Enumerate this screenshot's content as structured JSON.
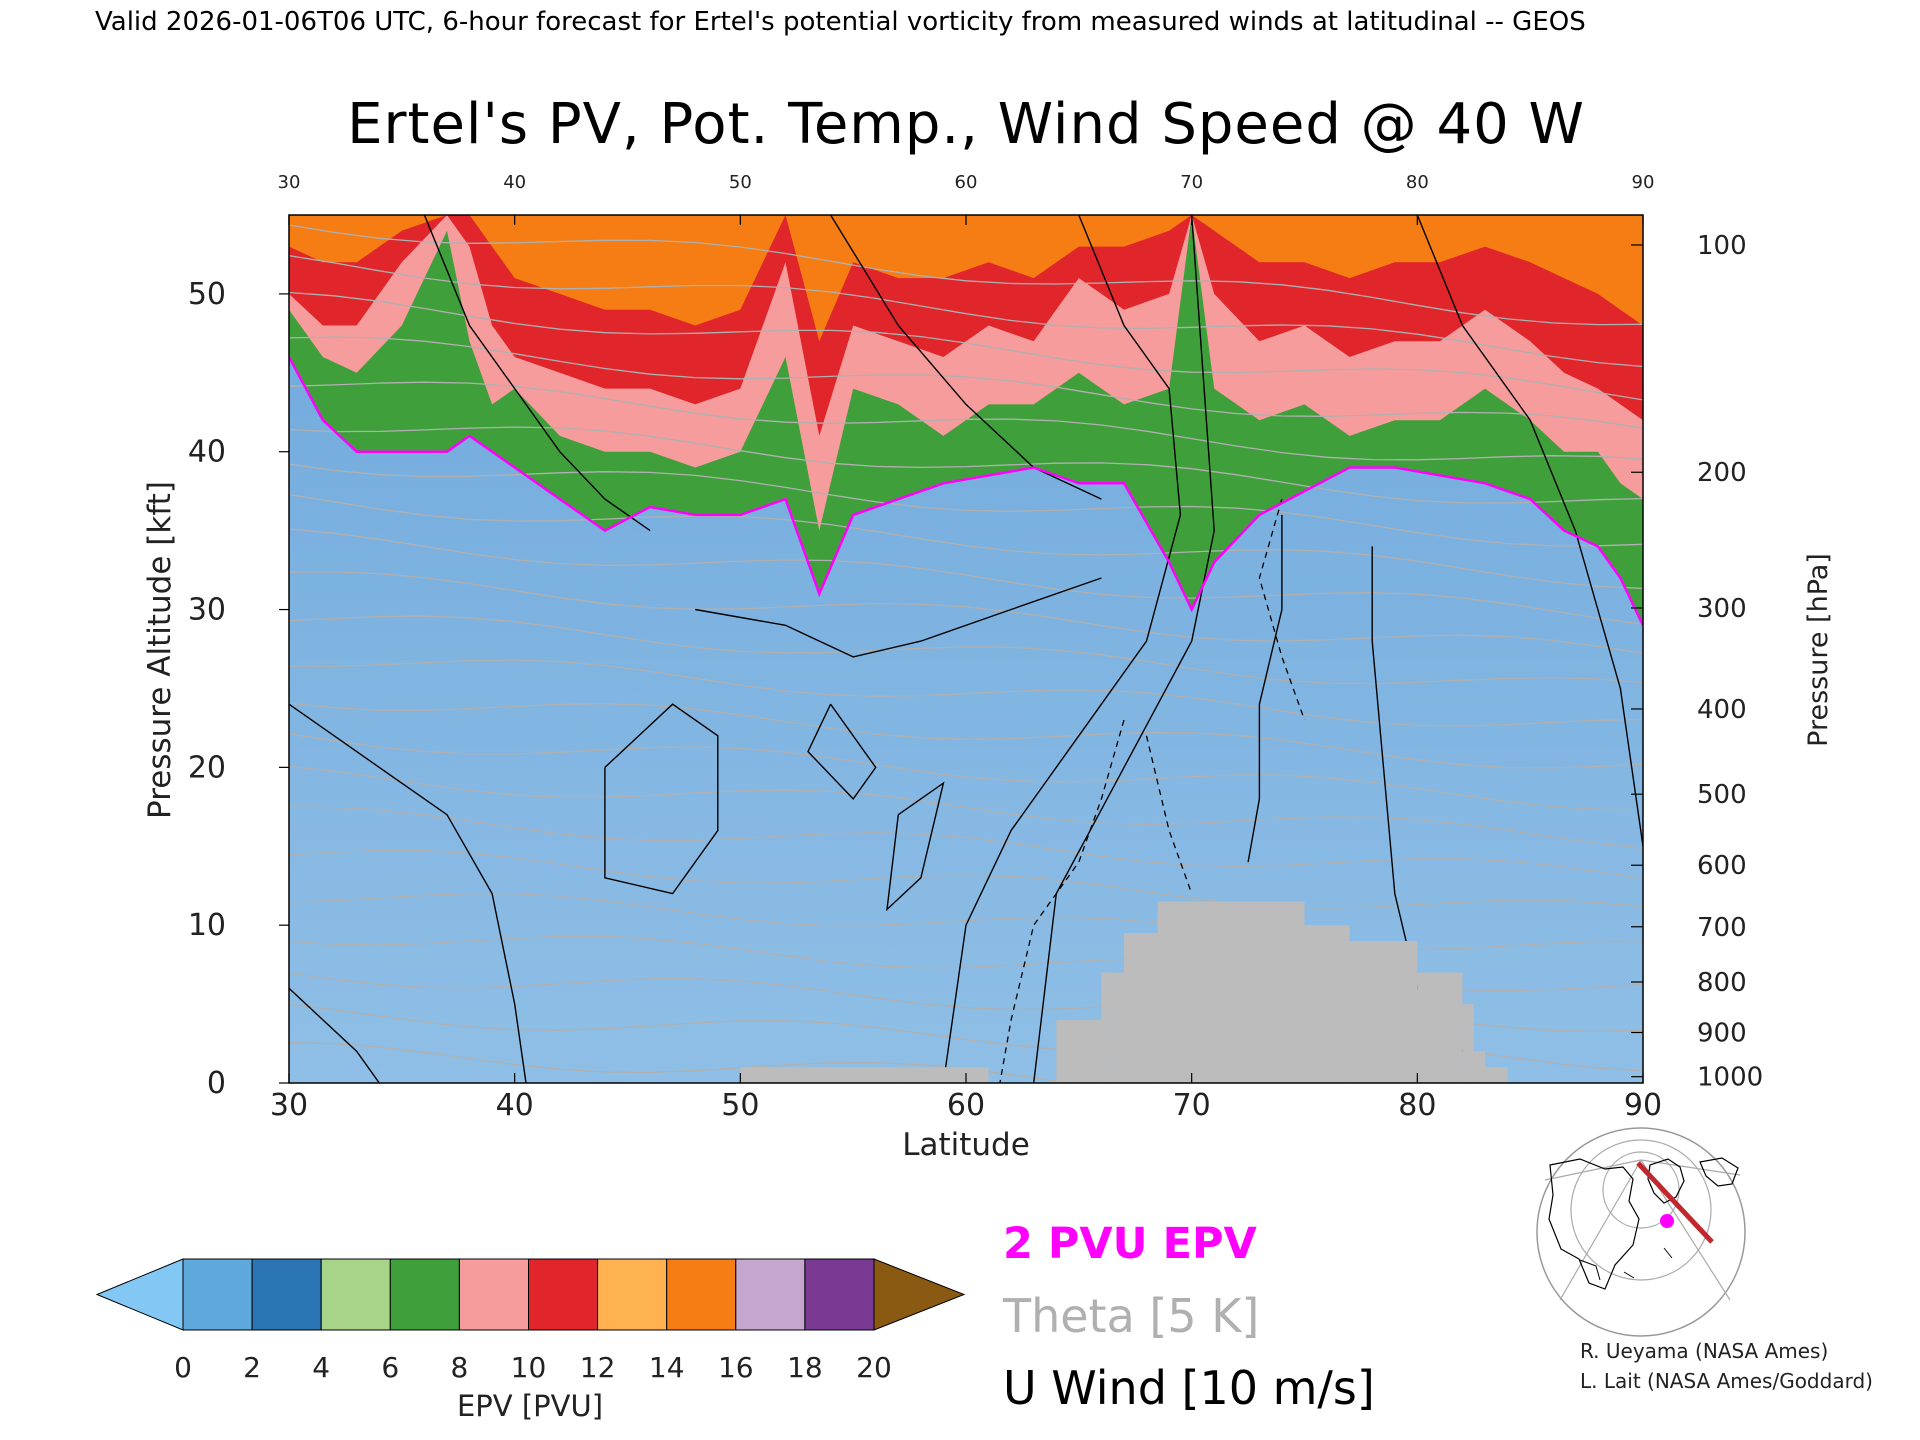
{
  "header": {
    "valid_line": "Valid 2026-01-06T06 UTC, 6-hour forecast for Ertel's potential vorticity from measured winds at latitudinal -- GEOS"
  },
  "chart_data": {
    "type": "heatmap",
    "title": "Ertel's PV, Pot. Temp., Wind Speed @ 40 W",
    "xlabel": "Latitude",
    "ylabel_left": "Pressure Altitude [kft]",
    "ylabel_right": "Pressure [hPa]",
    "xlim": [
      30,
      90
    ],
    "ylim": [
      0,
      55
    ],
    "x_ticks": [
      "30",
      "40",
      "50",
      "60",
      "70",
      "80",
      "90"
    ],
    "y_ticks": [
      "0",
      "10",
      "20",
      "30",
      "40",
      "50"
    ],
    "pressure_ticks": [
      {
        "label": "100",
        "kft": 53.1
      },
      {
        "label": "200",
        "kft": 38.7
      },
      {
        "label": "300",
        "kft": 30.1
      },
      {
        "label": "400",
        "kft": 23.7
      },
      {
        "label": "500",
        "kft": 18.3
      },
      {
        "label": "600",
        "kft": 13.8
      },
      {
        "label": "700",
        "kft": 9.9
      },
      {
        "label": "800",
        "kft": 6.4
      },
      {
        "label": "900",
        "kft": 3.2
      },
      {
        "label": "1000",
        "kft": 0.4
      }
    ],
    "pv_profile": {
      "lat": [
        30,
        31.5,
        33,
        35,
        37,
        38,
        39,
        40,
        42,
        44,
        46,
        48,
        50,
        52,
        53.5,
        55,
        57,
        59,
        61,
        63,
        65,
        67,
        69,
        70,
        71,
        73,
        75,
        77,
        79,
        81,
        83,
        85,
        86.5,
        88,
        89,
        90
      ],
      "tropopause_kft": [
        46,
        42,
        40,
        40,
        40,
        41,
        40,
        39,
        37,
        35,
        36.5,
        36,
        36,
        37,
        31,
        36,
        37,
        38,
        38.5,
        39,
        38,
        38,
        33,
        30,
        33,
        36,
        37.5,
        39,
        39,
        38.5,
        38,
        37,
        35,
        34,
        32,
        29
      ],
      "layer2_top_kft": [
        49,
        46,
        45,
        48,
        54,
        47,
        43,
        44,
        41,
        40,
        40,
        39,
        40,
        46,
        35,
        44,
        43,
        41,
        43,
        43,
        45,
        43,
        44,
        55,
        44,
        42,
        43,
        41,
        42,
        42,
        44,
        42,
        40,
        40,
        38,
        37
      ],
      "layer3_top_kft": [
        50,
        48,
        48,
        52,
        55,
        53,
        48,
        46,
        45,
        44,
        44,
        43,
        44,
        52,
        41,
        48,
        47,
        46,
        48,
        47,
        51,
        49,
        50,
        55,
        50,
        47,
        48,
        46,
        47,
        47,
        49,
        47,
        45,
        44,
        43,
        42
      ],
      "layer4_top_kft": [
        53,
        52,
        52,
        54,
        55,
        55,
        53,
        51,
        50,
        49,
        49,
        48,
        49,
        55,
        47,
        52,
        51,
        51,
        52,
        51,
        53,
        53,
        54,
        55,
        54,
        52,
        52,
        51,
        52,
        52,
        53,
        52,
        51,
        50,
        49,
        48
      ]
    },
    "color_scale": {
      "label": "EPV [PVU]",
      "ticks": [
        "0",
        "2",
        "4",
        "6",
        "8",
        "10",
        "12",
        "14",
        "16",
        "18",
        "20"
      ],
      "min": 0,
      "max": 20,
      "bin_colors": [
        "#5fa8dc",
        "#2c75b5",
        "#a8d48a",
        "#3f9f3a",
        "#f79c9c",
        "#e0252b",
        "#ffb24f",
        "#f57d14",
        "#c4a6cf",
        "#7a3a94",
        "#f1e48a"
      ],
      "under_color": "#83c7f5",
      "over_color": "#8b5a12"
    },
    "legend": {
      "pv_label": "2 PVU EPV",
      "pv_color": "#ff00ff",
      "theta_label": "Theta [5 K]",
      "theta_color": "#b0b0b0",
      "wind_label": "U Wind [10 m/s]",
      "wind_color": "#000000"
    },
    "terrain_color": "#bcbcbc"
  },
  "credits": {
    "line1": "R. Ueyama (NASA Ames)",
    "line2": "L. Lait (NASA Ames/Goddard)"
  },
  "locator_map": {
    "track_color": "#c0282d",
    "marker_color": "#ff00ff"
  }
}
